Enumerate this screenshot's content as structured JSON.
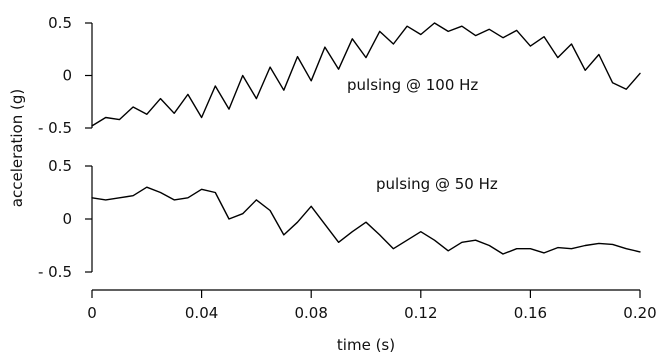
{
  "chart_data": [
    {
      "type": "line",
      "annotation": "pulsing @ 100 Hz",
      "ylabel": "acceleration (g)",
      "ylim": [
        -0.5,
        0.5
      ],
      "yticks": [
        {
          "value": 0.5,
          "label": "0.5"
        },
        {
          "value": 0,
          "label": "0"
        },
        {
          "value": -0.5,
          "label": "- 0.5"
        }
      ],
      "series": [
        {
          "x": [
            0,
            0.005,
            0.01,
            0.015,
            0.02,
            0.025,
            0.03,
            0.035,
            0.04,
            0.045,
            0.05,
            0.055,
            0.06,
            0.065,
            0.07,
            0.075,
            0.08,
            0.085,
            0.09,
            0.095,
            0.1,
            0.105,
            0.11,
            0.115,
            0.12,
            0.125,
            0.13,
            0.135,
            0.14,
            0.145,
            0.15,
            0.155,
            0.16,
            0.165,
            0.17,
            0.175,
            0.18,
            0.185,
            0.19,
            0.195,
            0.2
          ],
          "y": [
            -0.48,
            -0.4,
            -0.42,
            -0.3,
            -0.37,
            -0.22,
            -0.36,
            -0.18,
            -0.4,
            -0.1,
            -0.32,
            0.0,
            -0.22,
            0.08,
            -0.14,
            0.18,
            -0.05,
            0.27,
            0.06,
            0.35,
            0.17,
            0.42,
            0.3,
            0.47,
            0.39,
            0.5,
            0.42,
            0.47,
            0.38,
            0.44,
            0.36,
            0.43,
            0.28,
            0.37,
            0.17,
            0.3,
            0.05,
            0.2,
            -0.07,
            -0.13,
            0.02
          ]
        }
      ]
    },
    {
      "type": "line",
      "annotation": "pulsing @ 50 Hz",
      "ylim": [
        -0.5,
        0.5
      ],
      "yticks": [
        {
          "value": 0.5,
          "label": "0.5"
        },
        {
          "value": 0,
          "label": "0"
        },
        {
          "value": -0.5,
          "label": "- 0.5"
        }
      ],
      "xlabel": "time (s)",
      "xlim": [
        0,
        0.2
      ],
      "xticks": [
        {
          "value": 0,
          "label": "0"
        },
        {
          "value": 0.04,
          "label": "0.04"
        },
        {
          "value": 0.08,
          "label": "0.08"
        },
        {
          "value": 0.12,
          "label": "0.12"
        },
        {
          "value": 0.16,
          "label": "0.16"
        },
        {
          "value": 0.2,
          "label": "0.20"
        }
      ],
      "series": [
        {
          "x": [
            0,
            0.005,
            0.01,
            0.015,
            0.02,
            0.025,
            0.03,
            0.035,
            0.04,
            0.045,
            0.05,
            0.055,
            0.06,
            0.065,
            0.07,
            0.075,
            0.08,
            0.085,
            0.09,
            0.095,
            0.1,
            0.105,
            0.11,
            0.115,
            0.12,
            0.125,
            0.13,
            0.135,
            0.14,
            0.145,
            0.15,
            0.155,
            0.16,
            0.165,
            0.17,
            0.175,
            0.18,
            0.185,
            0.19,
            0.195,
            0.2
          ],
          "y": [
            0.2,
            0.18,
            0.2,
            0.22,
            0.3,
            0.25,
            0.18,
            0.2,
            0.28,
            0.25,
            0.0,
            0.05,
            0.18,
            0.08,
            -0.15,
            -0.03,
            0.12,
            -0.05,
            -0.22,
            -0.12,
            -0.03,
            -0.15,
            -0.28,
            -0.2,
            -0.12,
            -0.2,
            -0.3,
            -0.22,
            -0.2,
            -0.25,
            -0.33,
            -0.28,
            -0.28,
            -0.32,
            -0.27,
            -0.28,
            -0.25,
            -0.23,
            -0.24,
            -0.28,
            -0.31
          ]
        }
      ]
    }
  ]
}
